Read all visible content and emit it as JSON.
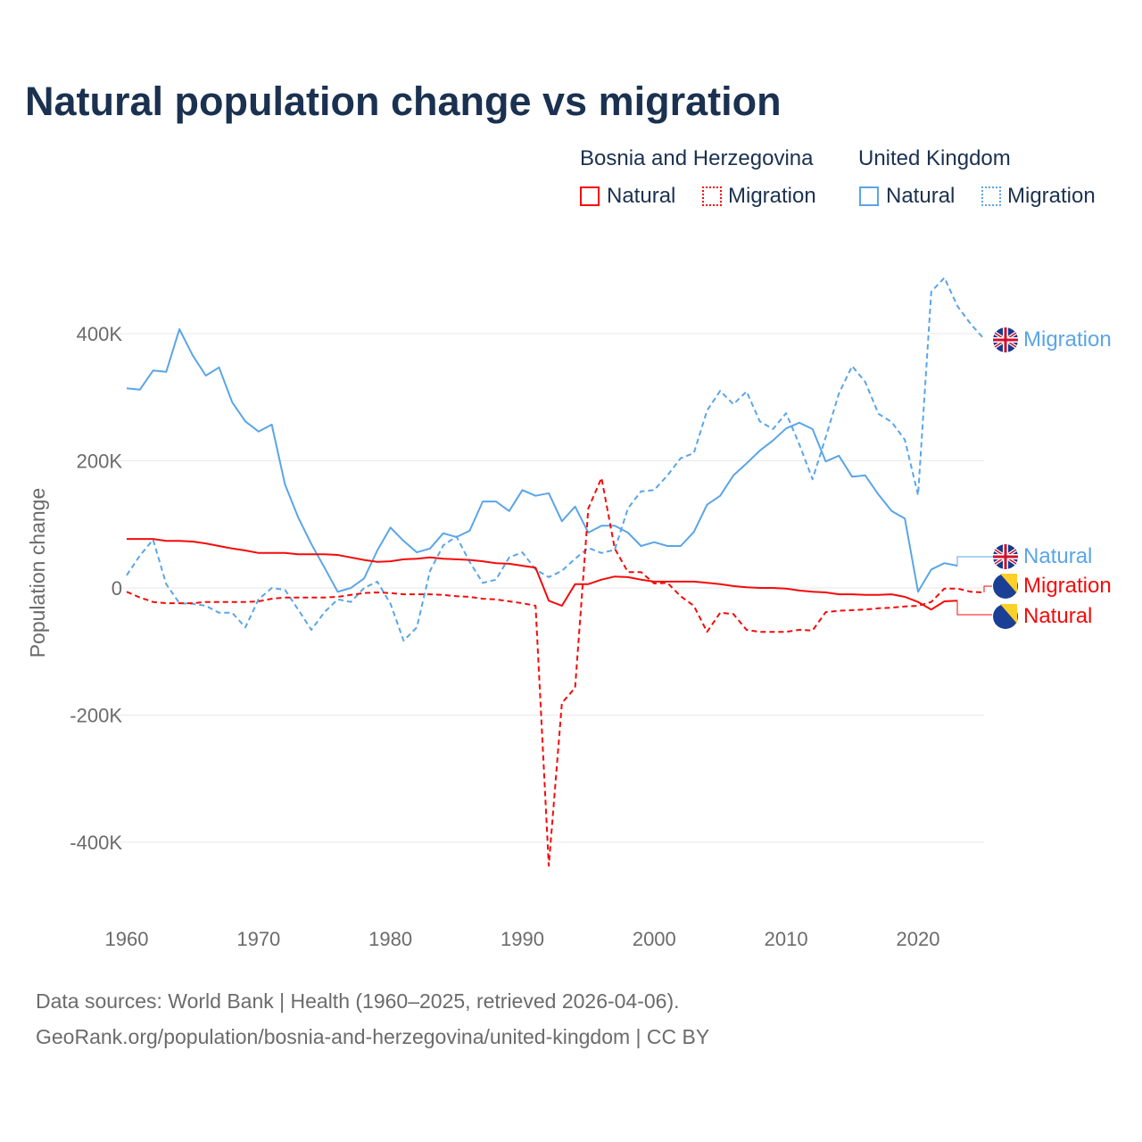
{
  "title": "Natural population change vs migration",
  "legend": {
    "groups": [
      {
        "name": "Bosnia and Herzegovina",
        "items": [
          "Natural",
          "Migration"
        ],
        "color": "#f50a0a"
      },
      {
        "name": "United Kingdom",
        "items": [
          "Natural",
          "Migration"
        ],
        "color": "#5aa5e8"
      }
    ]
  },
  "source": {
    "line1": "Data sources: World Bank | Health (1960–2025, retrieved 2026-04-06).",
    "line2": "GeoRank.org/population/bosnia-and-herzegovina/united-kingdom | CC BY"
  },
  "chart_data": {
    "type": "line",
    "title": "Natural population change vs migration",
    "xlabel": "",
    "ylabel": "Population change",
    "xlim": [
      1960,
      2025
    ],
    "ylim": [
      -500000,
      500000
    ],
    "xticks": [
      1960,
      1970,
      1980,
      1990,
      2000,
      2010,
      2020
    ],
    "xtick_labels": [
      "1960",
      "1970",
      "1980",
      "1990",
      "2000",
      "2010",
      "2020"
    ],
    "yticks": [
      400000,
      200000,
      0,
      -200000,
      -400000
    ],
    "ytick_labels": [
      "400K",
      "200K",
      "0",
      "-200K",
      "-400K"
    ],
    "grid": true,
    "series": [
      {
        "name": "United Kingdom Natural",
        "label": "Natural",
        "color": "#5aa5e8",
        "dash": false,
        "start": 1960,
        "values": [
          314,
          312,
          342,
          340,
          407,
          366,
          334,
          347,
          292,
          262,
          246,
          257,
          163,
          111,
          69,
          32,
          -6,
          0,
          15,
          59,
          95,
          74,
          56,
          62,
          86,
          80,
          90,
          136,
          136,
          121,
          154,
          145,
          149,
          105,
          128,
          87,
          98,
          98,
          87,
          66,
          72,
          66,
          66,
          88,
          131,
          145,
          177,
          196,
          216,
          232,
          251,
          260,
          250,
          199,
          208,
          175,
          177,
          147,
          121,
          109,
          -6,
          29,
          39,
          35
        ]
      },
      {
        "name": "United Kingdom Migration",
        "label": "Migration",
        "color": "#5aa5e8",
        "dash": true,
        "start": 1960,
        "values": [
          20,
          51,
          76,
          6,
          -24,
          -25,
          -28,
          -39,
          -39,
          -62,
          -18,
          0,
          -3,
          -34,
          -66,
          -38,
          -18,
          -22,
          0,
          10,
          -25,
          -83,
          -62,
          27,
          67,
          81,
          41,
          8,
          13,
          48,
          56,
          29,
          17,
          27,
          46,
          63,
          55,
          60,
          125,
          152,
          154,
          177,
          204,
          212,
          279,
          310,
          289,
          309,
          262,
          250,
          275,
          226,
          171,
          237,
          306,
          349,
          324,
          274,
          261,
          233,
          146,
          466,
          488,
          443,
          415,
          392
        ]
      },
      {
        "name": "Bosnia and Herzegovina Natural",
        "label": "Natural",
        "color": "#f50a0a",
        "dash": false,
        "start": 1960,
        "values": [
          77,
          77,
          77,
          74,
          74,
          73,
          70,
          66,
          62,
          59,
          55,
          55,
          55,
          53,
          53,
          53,
          52,
          48,
          44,
          41,
          42,
          45,
          46,
          48,
          46,
          45,
          44,
          42,
          39,
          38,
          35,
          32,
          -20,
          -28,
          6,
          6,
          13,
          18,
          17,
          13,
          10,
          10,
          10,
          10,
          8,
          6,
          3,
          1,
          0,
          0,
          -1,
          -4,
          -6,
          -7,
          -10,
          -10,
          -11,
          -11,
          -10,
          -14,
          -22,
          -34,
          -21,
          -20
        ]
      },
      {
        "name": "Bosnia and Herzegovina Migration",
        "label": "Migration",
        "color": "#f50a0a",
        "dash": true,
        "start": 1960,
        "values": [
          -6,
          -15,
          -22,
          -24,
          -24,
          -24,
          -22,
          -22,
          -22,
          -22,
          -21,
          -17,
          -15,
          -15,
          -15,
          -15,
          -14,
          -11,
          -8,
          -7,
          -8,
          -10,
          -10,
          -10,
          -11,
          -13,
          -14,
          -17,
          -18,
          -21,
          -24,
          -28,
          -437,
          -181,
          -157,
          125,
          173,
          62,
          25,
          25,
          7,
          8,
          -13,
          -28,
          -69,
          -39,
          -41,
          -66,
          -69,
          -69,
          -69,
          -66,
          -67,
          -38,
          -36,
          -35,
          -34,
          -32,
          -31,
          -29,
          -28,
          -22,
          -1,
          -1,
          -6,
          -7
        ]
      }
    ],
    "value_units": "thousands"
  }
}
